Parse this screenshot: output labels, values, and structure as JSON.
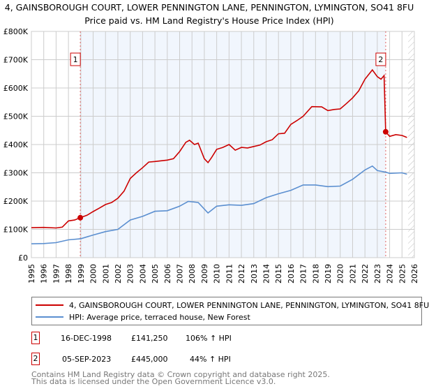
{
  "chart_data": {
    "type": "line",
    "title": "4, GAINSBOROUGH COURT, LOWER PENNINGTON LANE, PENNINGTON, LYMINGTON, SO41 8FU",
    "subtitle": "Price paid vs. HM Land Registry's House Price Index (HPI)",
    "xlabel": "",
    "ylabel": "",
    "xlim": [
      1995,
      2026
    ],
    "ylim": [
      0,
      800000
    ],
    "grid": true,
    "y_ticks": [
      {
        "value": 0,
        "label": "£0"
      },
      {
        "value": 100000,
        "label": "£100K"
      },
      {
        "value": 200000,
        "label": "£200K"
      },
      {
        "value": 300000,
        "label": "£300K"
      },
      {
        "value": 400000,
        "label": "£400K"
      },
      {
        "value": 500000,
        "label": "£500K"
      },
      {
        "value": 600000,
        "label": "£600K"
      },
      {
        "value": 700000,
        "label": "£700K"
      },
      {
        "value": 800000,
        "label": "£800K"
      }
    ],
    "x_ticks": [
      "1995",
      "1996",
      "1997",
      "1998",
      "1999",
      "2000",
      "2001",
      "2002",
      "2003",
      "2004",
      "2005",
      "2006",
      "2007",
      "2008",
      "2009",
      "2010",
      "2011",
      "2012",
      "2013",
      "2014",
      "2015",
      "2016",
      "2017",
      "2018",
      "2019",
      "2020",
      "2021",
      "2022",
      "2023",
      "2024",
      "2025",
      "2026"
    ],
    "shaded_range": [
      1998.96,
      2023.68
    ],
    "future_hatch_from": 2025.5,
    "series": [
      {
        "name": "4, GAINSBOROUGH COURT, LOWER PENNINGTON LANE, PENNINGTON, LYMINGTON, SO41 8FU",
        "color": "#cc0000",
        "x": [
          1995,
          1996,
          1997,
          1997.5,
          1998,
          1998.5,
          1998.96,
          1999.5,
          2000,
          2000.5,
          2001,
          2001.5,
          2002,
          2002.5,
          2003,
          2003.5,
          2004,
          2004.5,
          2005,
          2006,
          2006.5,
          2007,
          2007.5,
          2007.8,
          2008.2,
          2008.5,
          2009,
          2009.3,
          2009.6,
          2010,
          2010.5,
          2011,
          2011.5,
          2012,
          2012.5,
          2013,
          2013.5,
          2014,
          2014.5,
          2015,
          2015.5,
          2016,
          2016.5,
          2017,
          2017.7,
          2018.5,
          2019,
          2019.5,
          2020,
          2020.5,
          2021,
          2021.5,
          2022,
          2022.6,
          2023,
          2023.3,
          2023.55,
          2023.68,
          2024,
          2024.5,
          2025,
          2025.4
        ],
        "y": [
          106000,
          107000,
          105000,
          108000,
          130000,
          133000,
          141250,
          150000,
          163000,
          175000,
          188000,
          195000,
          210000,
          235000,
          280000,
          300000,
          318000,
          338000,
          340000,
          345000,
          350000,
          375000,
          408000,
          415000,
          400000,
          405000,
          350000,
          336000,
          355000,
          383000,
          390000,
          400000,
          380000,
          390000,
          388000,
          393000,
          398000,
          410000,
          417000,
          438000,
          440000,
          471000,
          485000,
          500000,
          534000,
          533000,
          520000,
          524000,
          526000,
          545000,
          565000,
          590000,
          631000,
          664000,
          640000,
          631000,
          644000,
          445000,
          429000,
          435000,
          432000,
          425000
        ]
      },
      {
        "name": "HPI: Average price, terraced house, New Forest",
        "color": "#5b8fd0",
        "x": [
          1995,
          1996,
          1997,
          1998,
          1999,
          2000,
          2001,
          2002,
          2003,
          2004,
          2005,
          2006,
          2007,
          2007.7,
          2008.5,
          2009.3,
          2010,
          2011,
          2012,
          2013,
          2014,
          2015,
          2016,
          2017,
          2018,
          2019,
          2020,
          2021,
          2022,
          2022.6,
          2023,
          2023.7,
          2024,
          2025,
          2025.4
        ],
        "y": [
          49000,
          50000,
          53000,
          63000,
          67000,
          80000,
          92000,
          100000,
          133000,
          146000,
          164000,
          166000,
          182000,
          199000,
          195000,
          158000,
          182000,
          187000,
          185000,
          191000,
          212000,
          226000,
          238000,
          257000,
          257000,
          251000,
          253000,
          277000,
          310000,
          324000,
          308000,
          302000,
          298000,
          300000,
          295000
        ]
      }
    ],
    "annotations": [
      {
        "label": "1",
        "x": 1998.96,
        "y": 141250
      },
      {
        "label": "2",
        "x": 2023.68,
        "y": 445000
      }
    ]
  },
  "legend": {
    "property_label": "4, GAINSBOROUGH COURT, LOWER PENNINGTON LANE, PENNINGTON, LYMINGTON, SO41 8FU",
    "hpi_label": "HPI: Average price, terraced house, New Forest"
  },
  "transactions": [
    {
      "num": "1",
      "date": "16-DEC-1998",
      "price": "£141,250",
      "hpi": "106% ↑ HPI"
    },
    {
      "num": "2",
      "date": "05-SEP-2023",
      "price": "£445,000",
      "hpi": "44% ↑ HPI"
    }
  ],
  "footer": {
    "line1": "Contains HM Land Registry data © Crown copyright and database right 2025.",
    "line2": "This data is licensed under the Open Government Licence v3.0."
  }
}
